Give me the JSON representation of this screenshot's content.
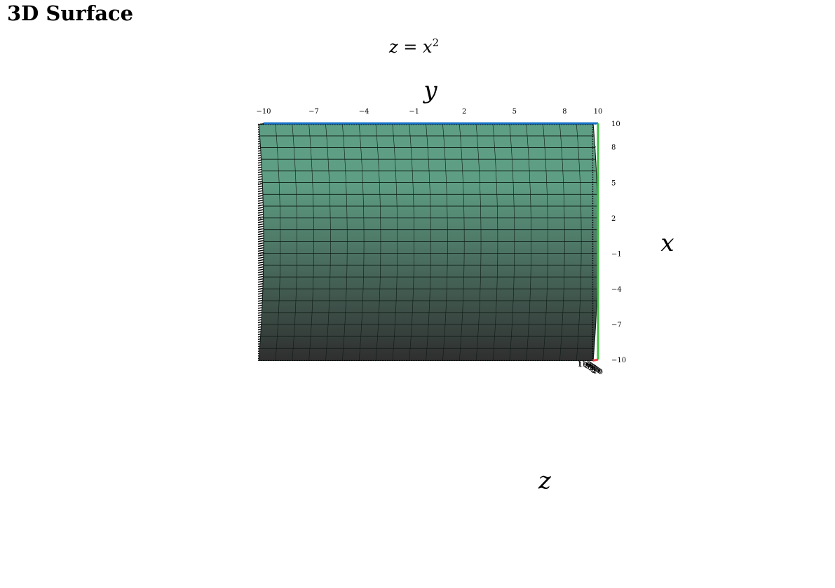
{
  "page": {
    "title": "3D Surface"
  },
  "chart_data": {
    "type": "surface",
    "title": "z = x²",
    "formula": {
      "lhs": "z",
      "rhs_base": "x",
      "exponent": "2"
    },
    "axes": {
      "x": {
        "label": "x",
        "range": [
          -10,
          10
        ],
        "ticks": [
          "10",
          "8",
          "5",
          "2",
          "−1",
          "−4",
          "−7",
          "−10"
        ]
      },
      "y": {
        "label": "y",
        "range": [
          -10,
          10
        ],
        "ticks": [
          "−10",
          "−7",
          "−4",
          "−1",
          "2",
          "5",
          "8",
          "10"
        ]
      },
      "z": {
        "label": "z",
        "range": [
          0,
          110
        ],
        "ticks": [
          "0",
          "10",
          "20",
          "30",
          "40",
          "50",
          "60",
          "70",
          "80",
          "90",
          "100",
          "110"
        ]
      }
    },
    "axis_colors": {
      "x": "#3ec23e",
      "y": "#1a73c8",
      "z": "#ee4444"
    },
    "surface_color_top": "#5e9e84",
    "surface_color_bottom": "#2f2f2f",
    "grid": "dotted"
  }
}
